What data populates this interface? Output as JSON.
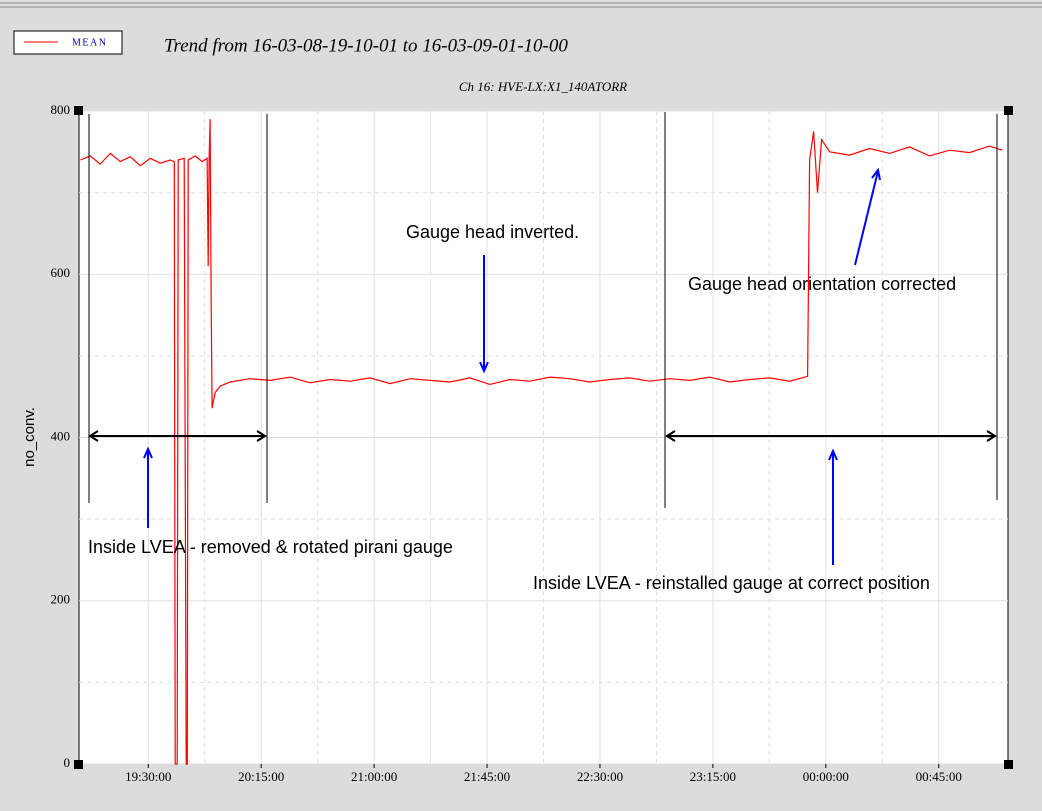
{
  "chart_data": {
    "type": "line",
    "title": "Trend from 16-03-08-19-10-01 to 16-03-09-01-10-00",
    "subtitle": "Ch 16: HVE-LX:X1_140ATORR",
    "y_label": "no_conv.",
    "x": [
      19.049,
      19.115,
      19.181,
      19.248,
      19.314,
      19.381,
      19.447,
      19.513,
      19.58,
      19.646,
      19.673,
      19.679,
      19.692,
      19.699,
      19.739,
      19.752,
      19.759,
      19.765,
      19.812,
      19.858,
      19.891,
      19.898,
      19.904,
      19.911,
      19.918,
      19.924,
      19.944,
      19.978,
      20.044,
      20.177,
      20.31,
      20.442,
      20.575,
      20.708,
      20.84,
      20.973,
      21.106,
      21.239,
      21.371,
      21.504,
      21.637,
      21.769,
      21.902,
      22.035,
      22.168,
      22.3,
      22.433,
      22.566,
      22.698,
      22.831,
      22.964,
      23.097,
      23.229,
      23.362,
      23.495,
      23.627,
      23.76,
      23.879,
      23.892,
      23.919,
      23.945,
      23.972,
      24.026,
      24.158,
      24.291,
      24.424,
      24.556,
      24.689,
      24.822,
      24.955,
      25.087,
      25.173
    ],
    "series": [
      {
        "name": "MEAN",
        "color": "#ff0000",
        "values": [
          740,
          745,
          735,
          748,
          738,
          744,
          733,
          742,
          736,
          740,
          738,
          0,
          0,
          740,
          742,
          0,
          0,
          740,
          745,
          738,
          742,
          610,
          740,
          790,
          560,
          436,
          455,
          463,
          468,
          472,
          470,
          474,
          467,
          471,
          469,
          473,
          466,
          472,
          470,
          468,
          473,
          465,
          471,
          469,
          474,
          472,
          468,
          471,
          473,
          469,
          472,
          470,
          474,
          468,
          471,
          473,
          469,
          475,
          740,
          775,
          700,
          765,
          750,
          746,
          754,
          748,
          756,
          745,
          752,
          749,
          757,
          752
        ]
      }
    ],
    "xlim": [
      19.04,
      25.21
    ],
    "xticks": [
      {
        "value": 19.5,
        "label": "19:30:00"
      },
      {
        "value": 20.25,
        "label": "20:15:00"
      },
      {
        "value": 21,
        "label": "21:00:00"
      },
      {
        "value": 21.75,
        "label": "21:45:00"
      },
      {
        "value": 22.5,
        "label": "22:30:00"
      },
      {
        "value": 23.25,
        "label": "23:15:00"
      },
      {
        "value": 24,
        "label": "00:00:00"
      },
      {
        "value": 24.75,
        "label": "00:45:00"
      }
    ],
    "ylim": [
      0,
      800
    ],
    "yticks": [
      0,
      200,
      400,
      600,
      800
    ],
    "grid": true,
    "annotations": [
      "Gauge head inverted.",
      "Gauge head orientation corrected",
      "Inside LVEA - removed & rotated pirani gauge",
      "Inside LVEA - reinstalled gauge at correct position"
    ]
  }
}
